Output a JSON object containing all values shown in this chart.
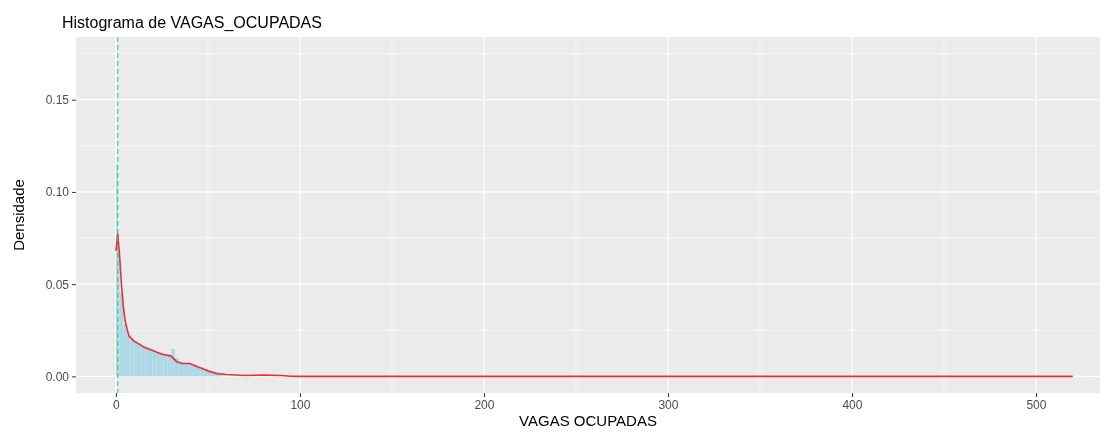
{
  "chart_data": {
    "type": "histogram",
    "title": "Histograma de VAGAS_OCUPADAS",
    "xlabel": "VAGAS OCUPADAS",
    "ylabel": "Densidade",
    "bins": [
      0,
      1,
      2,
      4,
      6,
      8,
      10,
      12,
      14,
      16,
      18,
      20,
      22,
      24,
      26,
      28,
      30,
      32,
      34,
      36,
      38,
      40,
      42,
      44,
      46,
      48,
      50,
      52,
      54,
      56,
      58
    ],
    "values": [
      0.115,
      0.07,
      0.045,
      0.028,
      0.022,
      0.02,
      0.019,
      0.018,
      0.017,
      0.016,
      0.015,
      0.014,
      0.013,
      0.013,
      0.012,
      0.012,
      0.015,
      0.01,
      0.008,
      0.007,
      0.007,
      0.007,
      0.006,
      0.005,
      0.005,
      0.004,
      0.003,
      0.002,
      0.0015,
      0.001
    ],
    "color": "#add8e6",
    "series": [
      {
        "type": "line",
        "color": "#e8303a",
        "x": [
          0,
          1,
          2,
          3,
          4,
          5,
          7,
          10,
          15,
          20,
          25,
          30,
          33,
          36,
          40,
          45,
          50,
          55,
          60,
          70,
          80,
          90,
          95,
          100,
          200,
          300,
          400,
          520
        ],
        "values": [
          0.068,
          0.077,
          0.065,
          0.05,
          0.038,
          0.03,
          0.022,
          0.019,
          0.016,
          0.014,
          0.012,
          0.011,
          0.008,
          0.007,
          0.007,
          0.005,
          0.003,
          0.0015,
          0.001,
          0.0005,
          0.0007,
          0.0005,
          0.0001,
          0,
          0,
          0,
          0,
          0
        ]
      }
    ],
    "ref_lines": [
      {
        "axis": "x",
        "value": 1,
        "color": "#2ecc71",
        "line_style": "dashed"
      }
    ],
    "xlim": [
      -21.7,
      534.8
    ],
    "ylim": [
      -0.009,
      0.184
    ],
    "xticks": [
      0,
      100,
      200,
      300,
      400,
      500
    ],
    "yticks": [
      {
        "value": 0,
        "label": "0.00"
      },
      {
        "value": 0.05,
        "label": "0.05"
      },
      {
        "value": 0.1,
        "label": "0.10"
      },
      {
        "value": 0.15,
        "label": "0.15"
      }
    ],
    "grid": true
  }
}
